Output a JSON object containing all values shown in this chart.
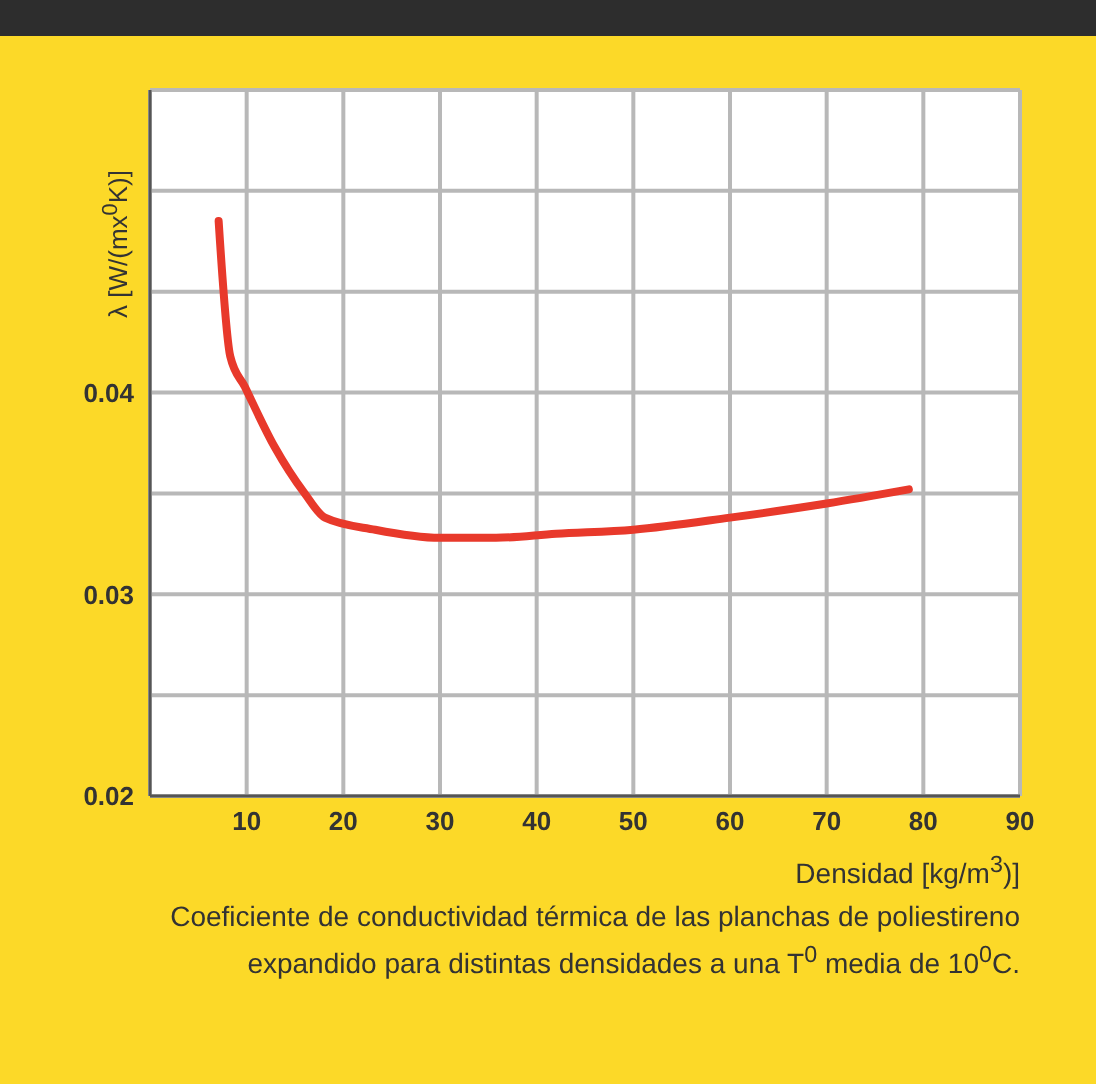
{
  "chart_data": {
    "type": "line",
    "xlabel": "Densidad [kg/m$^{3}$)]",
    "ylabel": "λ [W/(mx$^{0}$K)]",
    "annotations": [
      "Coeficiente de conductividad térmica de las planchas de poliestireno expandido para distintas densidades a una T$^{0}$ media de 10$^{0}$C."
    ],
    "series": [
      {
        "color": "#e8392b",
        "x": [
          7.1,
          8.3,
          9.8,
          12.9,
          16,
          18.1,
          23.3,
          30,
          35.8,
          42,
          50,
          60,
          70,
          78.5
        ],
        "values": [
          0.0485,
          0.0418,
          0.0403,
          0.0373,
          0.035,
          0.0338,
          0.0332,
          0.0328,
          0.0328,
          0.033,
          0.0332,
          0.0338,
          0.0345,
          0.0352
        ]
      }
    ],
    "xlim": [
      0,
      90
    ],
    "xticks": [
      {
        "value": 0,
        "label": null
      },
      10,
      20,
      30,
      40,
      50,
      60,
      70,
      80,
      90
    ],
    "ylim": [
      0.02,
      0.055
    ],
    "yticks": [
      0.02,
      {
        "value": 0.025,
        "label": null
      },
      0.03,
      {
        "value": 0.035,
        "label": null
      },
      0.04,
      {
        "value": 0.045,
        "label": null
      },
      {
        "value": 0.05,
        "label": null
      },
      {
        "value": 0.055,
        "label": null
      }
    ],
    "grid": true,
    "marker": "none",
    "line_style": "solid"
  }
}
